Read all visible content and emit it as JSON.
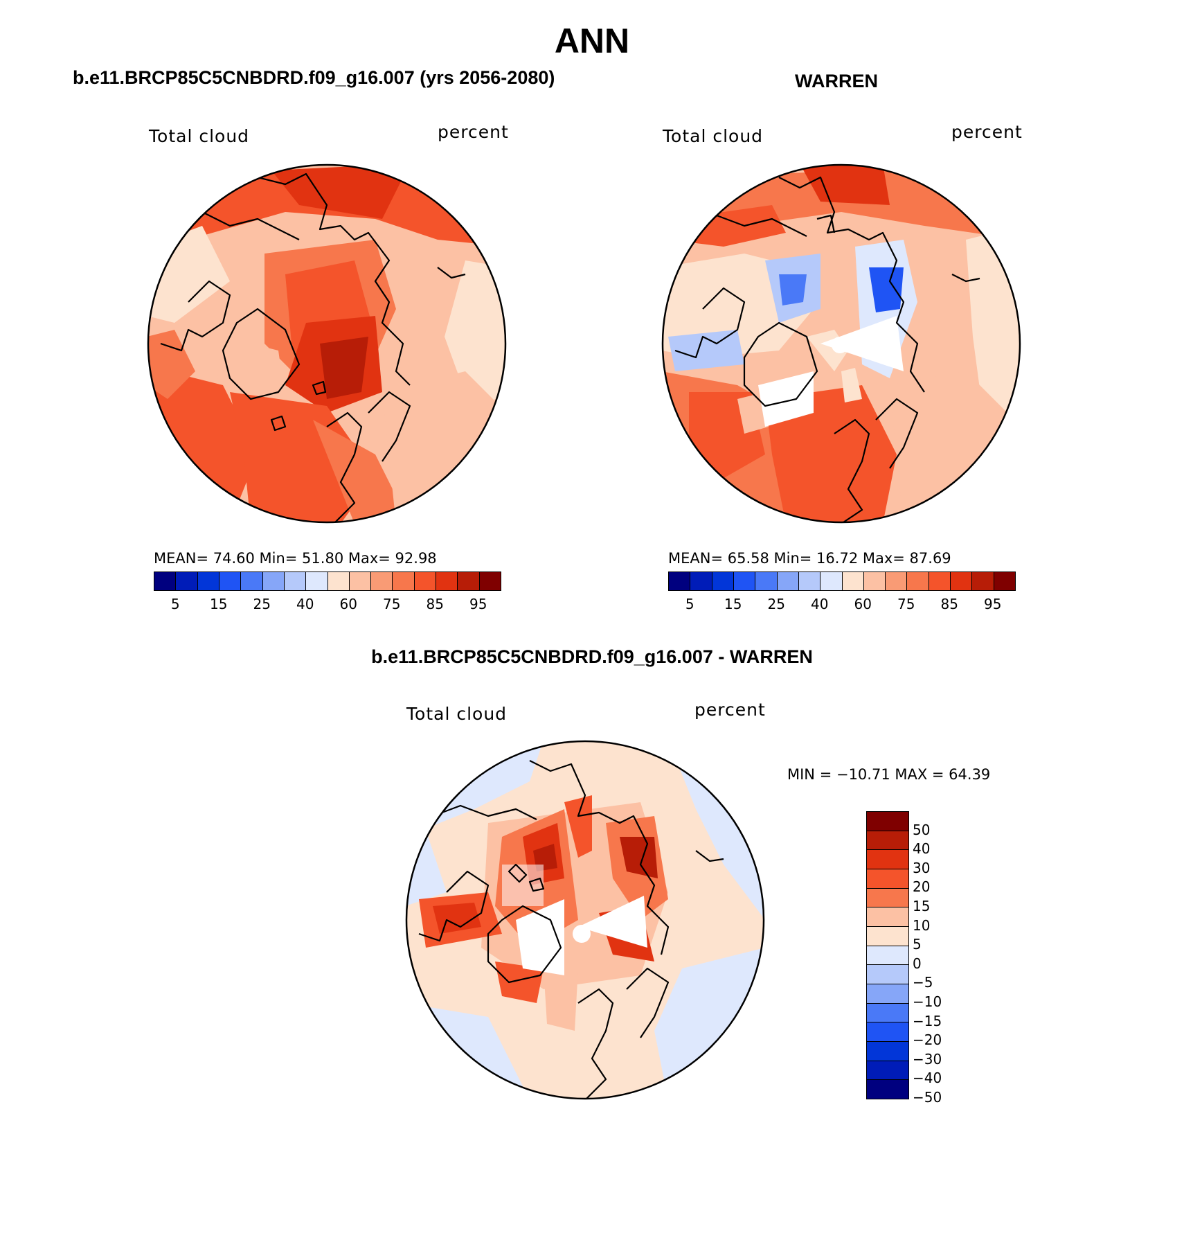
{
  "title": "ANN",
  "panels": {
    "model": {
      "title": "b.e11.BRCP85C5CNBDRD.f09_g16.007 (yrs 2056-2080)",
      "variable": "Total cloud",
      "units": "percent",
      "stats": "MEAN=   74.60   Min=   51.80   Max=   92.98"
    },
    "obs": {
      "title": "WARREN",
      "variable": "Total cloud",
      "units": "percent",
      "stats": "MEAN=   65.58   Min=   16.72   Max=   87.69"
    },
    "diff": {
      "title": "b.e11.BRCP85C5CNBDRD.f09_g16.007 - WARREN",
      "variable": "Total cloud",
      "units": "percent",
      "stats": "MIN = −10.71  MAX =   64.39"
    }
  },
  "colorbar_abs": {
    "colors": [
      "#00007f",
      "#001cb8",
      "#0236d8",
      "#1f54f4",
      "#4a79f7",
      "#86a6f8",
      "#b5c9fa",
      "#dee8fd",
      "#fde3cf",
      "#fcc1a4",
      "#f99b75",
      "#f7774c",
      "#f4542b",
      "#e13311",
      "#b71d07",
      "#7f0000"
    ],
    "tick_labels": [
      "5",
      "15",
      "25",
      "40",
      "60",
      "75",
      "85",
      "95"
    ]
  },
  "colorbar_diff": {
    "colors": [
      "#7f0000",
      "#b71d07",
      "#e13311",
      "#f4542b",
      "#f7774c",
      "#fcc1a4",
      "#fde3cf",
      "#dee8fd",
      "#b5c9fa",
      "#86a6f8",
      "#4a79f7",
      "#1f54f4",
      "#0236d8",
      "#001cb8",
      "#00007f"
    ],
    "tick_labels": [
      "50",
      "40",
      "30",
      "20",
      "15",
      "10",
      "5",
      "0",
      "−5",
      "−10",
      "−15",
      "−20",
      "−30",
      "−40",
      "−50"
    ]
  }
}
